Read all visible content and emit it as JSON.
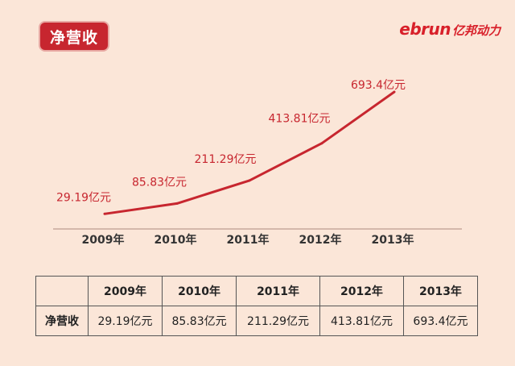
{
  "title_badge": "净营收",
  "brand": {
    "latin": "ebrun",
    "cn": "亿邦动力"
  },
  "chart_data": {
    "type": "line",
    "title": "净营收",
    "categories": [
      "2009年",
      "2010年",
      "2011年",
      "2012年",
      "2013年"
    ],
    "values": [
      29.19,
      85.83,
      211.29,
      413.81,
      693.4
    ],
    "data_labels": [
      "29.19亿元",
      "85.83亿元",
      "211.29亿元",
      "413.81亿元",
      "693.4亿元"
    ],
    "unit": "亿元",
    "line_color": "#c7262f",
    "grid": false
  },
  "table": {
    "headers": [
      "",
      "2009年",
      "2010年",
      "2011年",
      "2012年",
      "2013年"
    ],
    "row": [
      "净营收",
      "29.19亿元",
      "85.83亿元",
      "211.29亿元",
      "413.81亿元",
      "693.4亿元"
    ]
  }
}
